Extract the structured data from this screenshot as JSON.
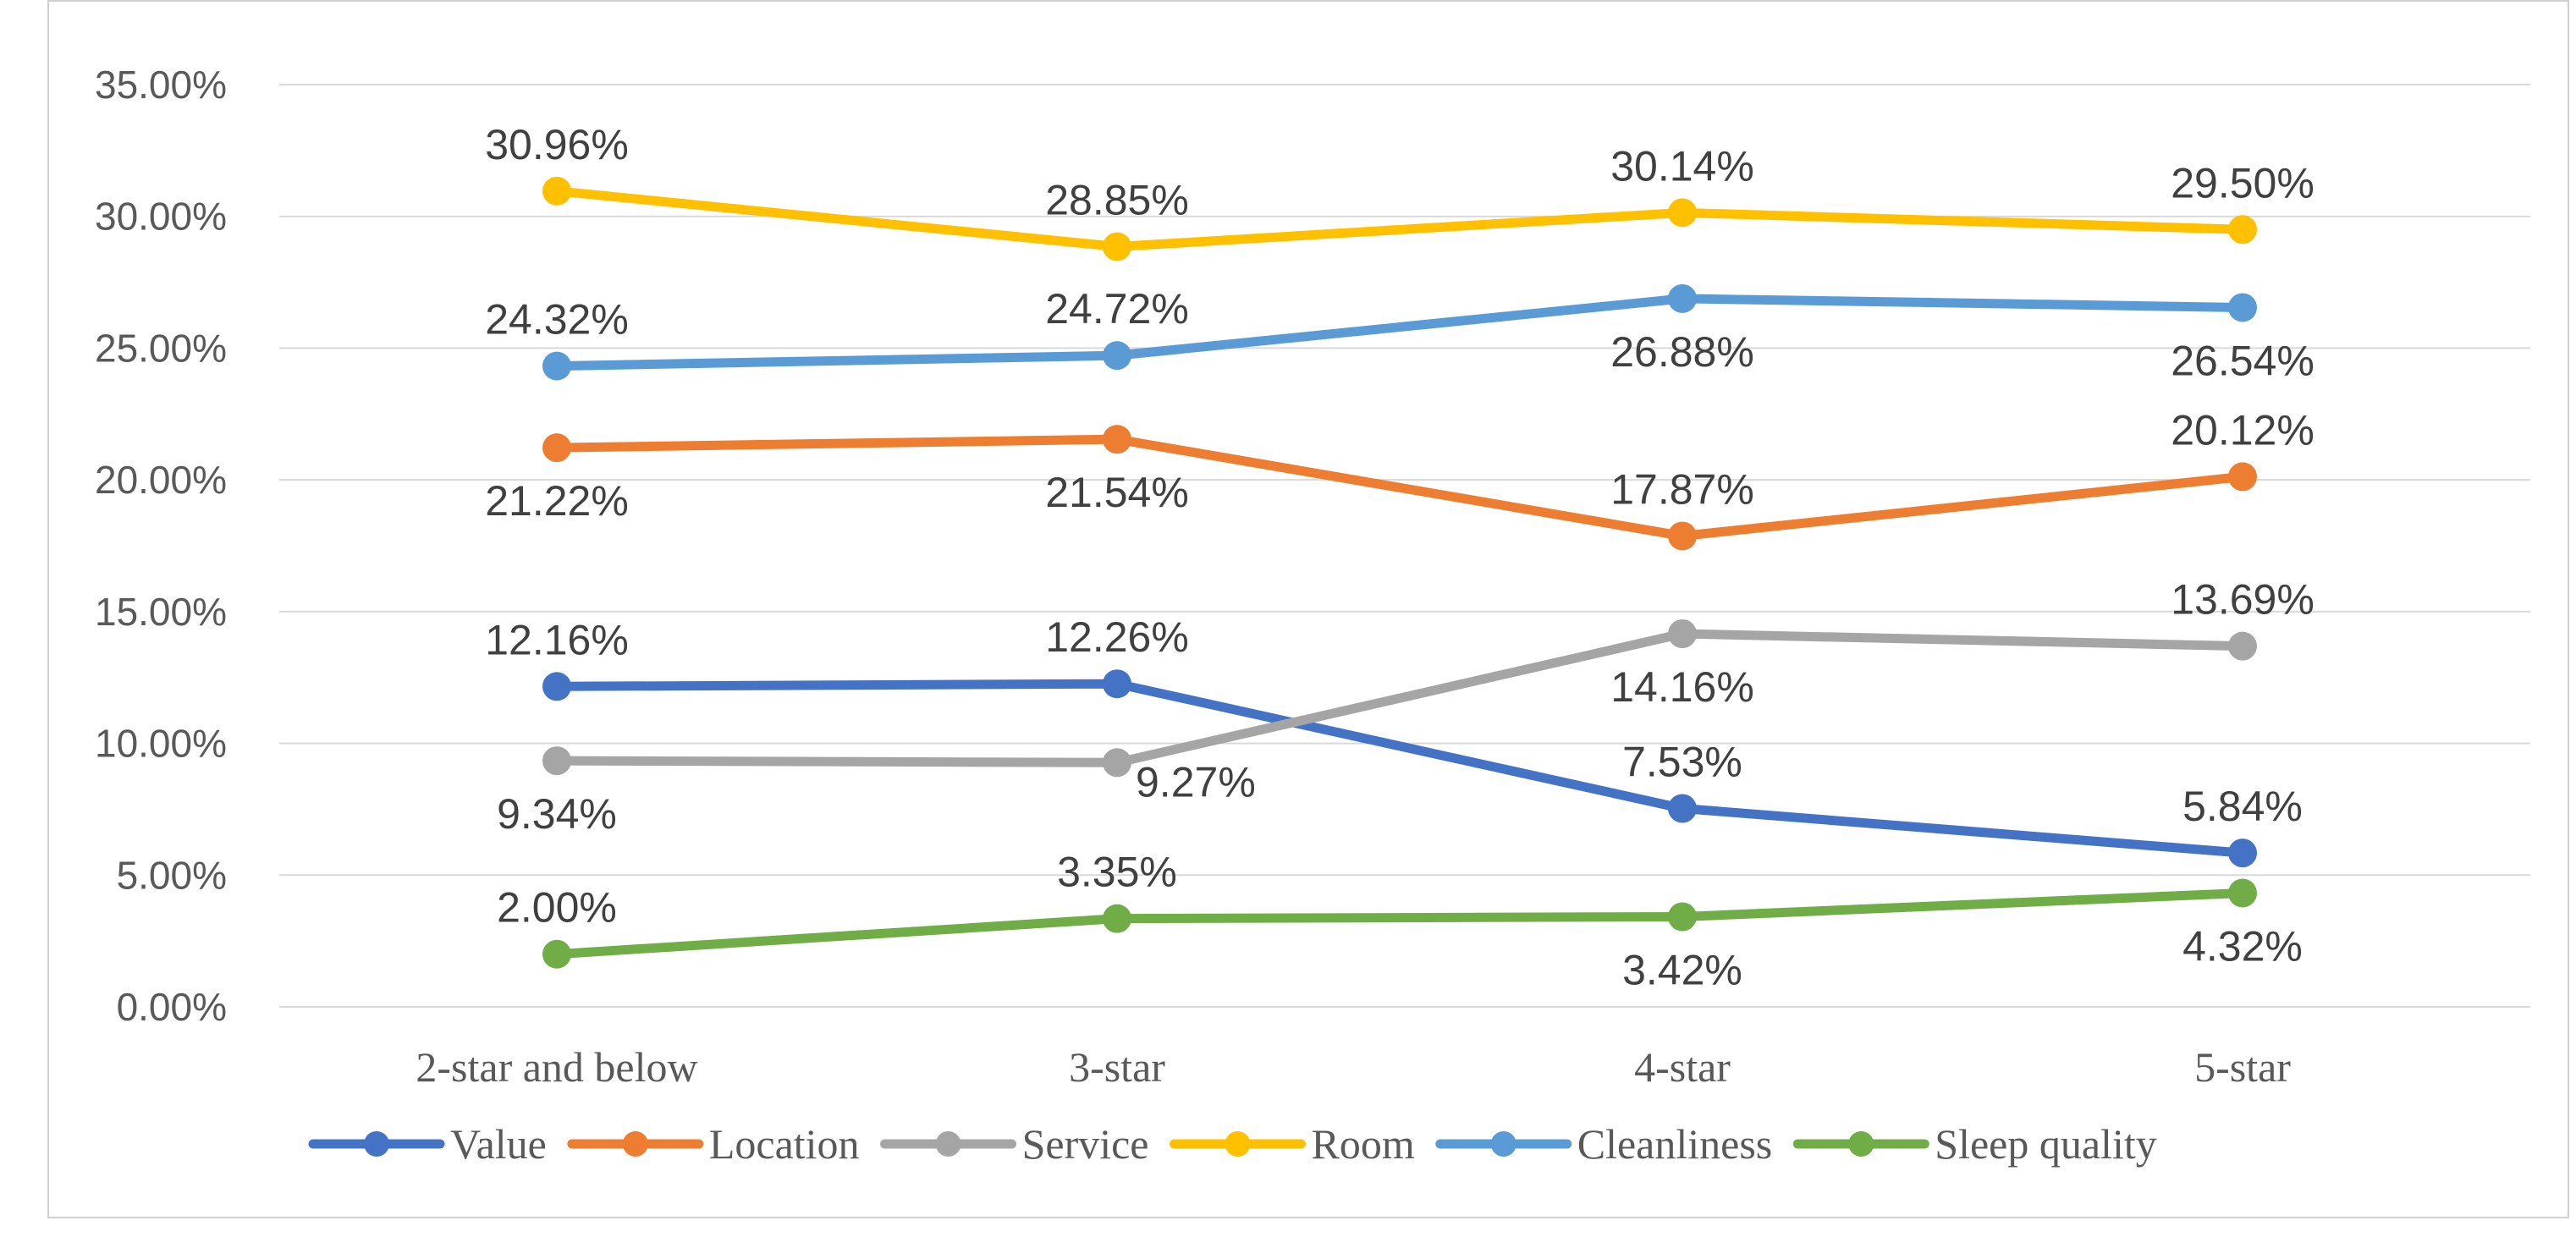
{
  "chart_data": {
    "type": "line",
    "categories": [
      "2-star and below",
      "3-star",
      "4-star",
      "5-star"
    ],
    "ylim": [
      0,
      35
    ],
    "ytick_values": [
      0,
      5,
      10,
      15,
      20,
      25,
      30,
      35
    ],
    "ytick_labels": [
      "0.00%",
      "5.00%",
      "10.00%",
      "15.00%",
      "20.00%",
      "25.00%",
      "30.00%",
      "35.00%"
    ],
    "grid": true,
    "legend_position": "bottom",
    "series": [
      {
        "name": "Value",
        "color": "#4472C4",
        "values": [
          12.16,
          12.26,
          7.53,
          5.84
        ],
        "labels": [
          "12.16%",
          "12.26%",
          "7.53%",
          "5.84%"
        ],
        "label_pos": [
          "above",
          "above",
          "above",
          "above"
        ]
      },
      {
        "name": "Location",
        "color": "#ED7D31",
        "values": [
          21.22,
          21.54,
          17.87,
          20.12
        ],
        "labels": [
          "21.22%",
          "21.54%",
          "17.87%",
          "20.12%"
        ],
        "label_pos": [
          "below",
          "below",
          "above",
          "above"
        ]
      },
      {
        "name": "Service",
        "color": "#A5A5A5",
        "values": [
          9.34,
          9.27,
          14.16,
          13.69
        ],
        "labels": [
          "9.34%",
          "9.27%",
          "14.16%",
          "13.69%"
        ],
        "label_pos": [
          "below",
          "below-right",
          "below",
          "above"
        ]
      },
      {
        "name": "Room",
        "color": "#FFC000",
        "values": [
          30.96,
          28.85,
          30.14,
          29.5
        ],
        "labels": [
          "30.96%",
          "28.85%",
          "30.14%",
          "29.50%"
        ],
        "label_pos": [
          "above",
          "above",
          "above",
          "above"
        ]
      },
      {
        "name": "Cleanliness",
        "color": "#5B9BD5",
        "values": [
          24.32,
          24.72,
          26.88,
          26.54
        ],
        "labels": [
          "24.32%",
          "24.72%",
          "26.88%",
          "26.54%"
        ],
        "label_pos": [
          "above",
          "above",
          "below",
          "below"
        ]
      },
      {
        "name": "Sleep quality",
        "color": "#70AD47",
        "values": [
          2.0,
          3.35,
          3.42,
          4.32
        ],
        "labels": [
          "2.00%",
          "3.35%",
          "3.42%",
          "4.32%"
        ],
        "label_pos": [
          "above",
          "above",
          "below",
          "below"
        ]
      }
    ]
  }
}
